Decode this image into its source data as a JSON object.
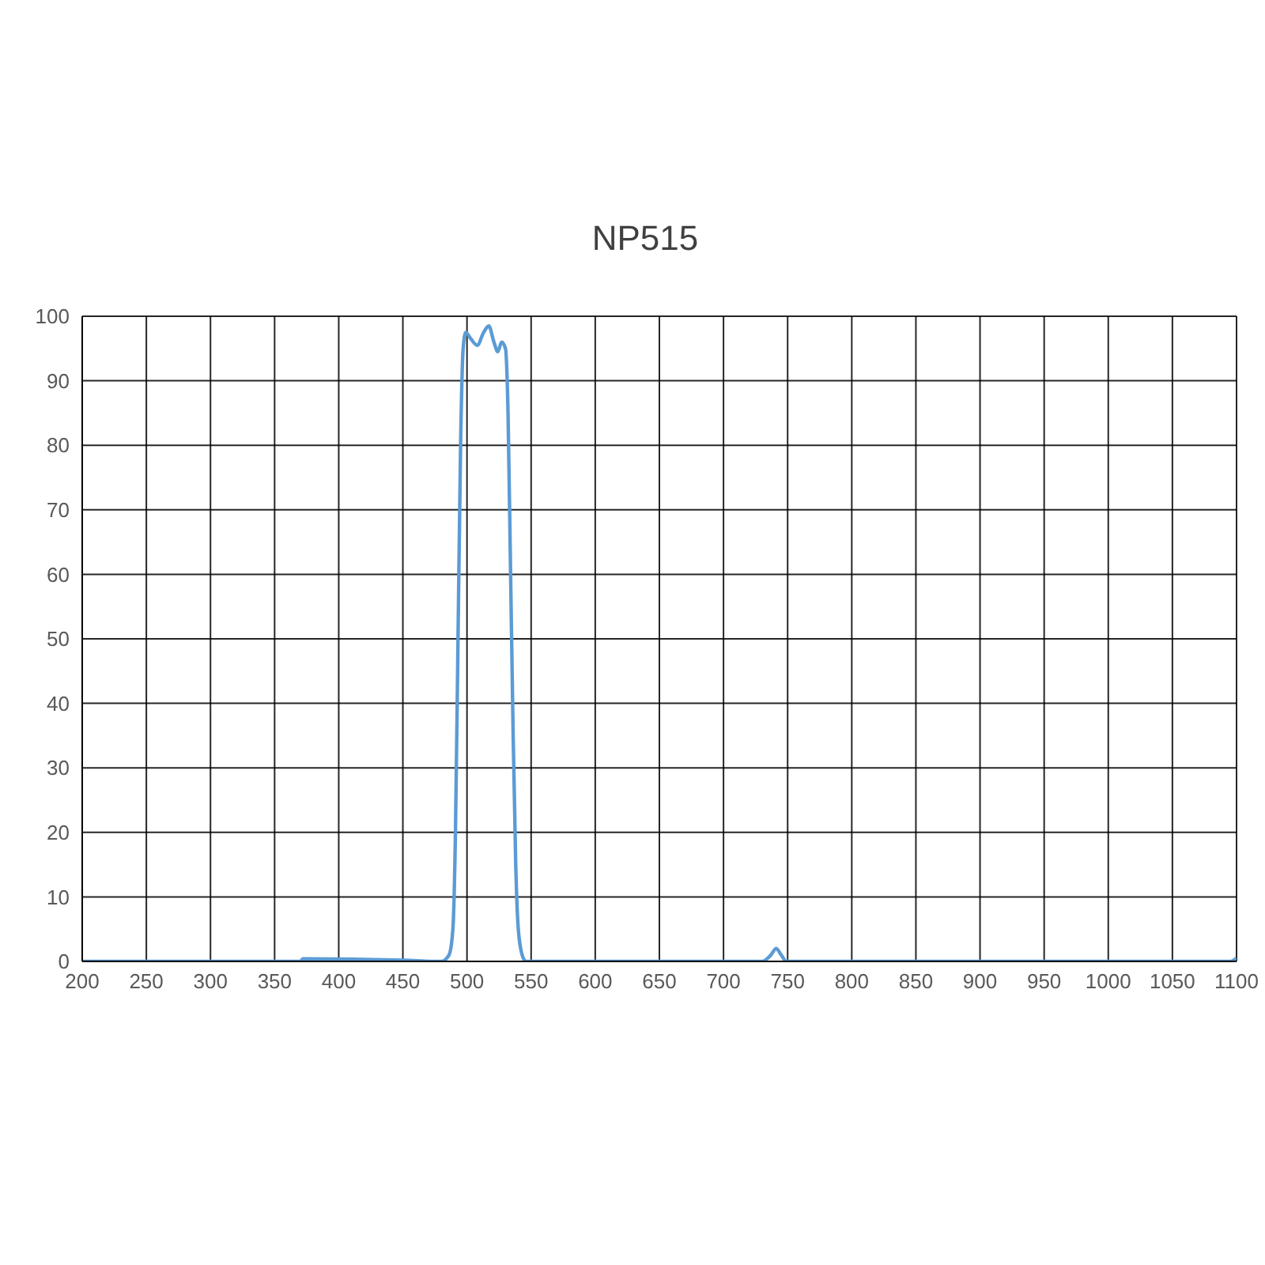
{
  "chart_data": {
    "type": "line",
    "title": "NP515",
    "x": [
      200,
      370,
      372,
      450,
      480,
      486,
      489,
      491,
      493,
      495,
      497,
      499,
      503,
      508,
      513,
      517,
      521,
      524,
      527,
      530,
      532,
      534,
      536,
      538,
      540,
      543,
      546,
      730,
      737,
      741,
      745,
      749,
      1095,
      1100
    ],
    "series": [
      {
        "color": "#5b9bd5",
        "values": [
          0,
          0,
          0.4,
          0.2,
          0,
          1,
          5,
          20,
          50,
          80,
          95,
          97.5,
          96.5,
          95.5,
          97.5,
          98.5,
          96,
          94.5,
          96,
          95,
          85,
          60,
          35,
          15,
          5,
          1,
          0,
          0,
          1,
          2,
          1,
          0,
          0,
          0.5
        ]
      }
    ],
    "xlim": [
      200,
      1100
    ],
    "xticks": [
      200,
      250,
      300,
      350,
      400,
      450,
      500,
      550,
      600,
      650,
      700,
      750,
      800,
      850,
      900,
      950,
      1000,
      1050,
      1100
    ],
    "ylim": [
      0,
      100
    ],
    "yticks": [
      0,
      10,
      20,
      30,
      40,
      50,
      60,
      70,
      80,
      90,
      100
    ],
    "grid": true,
    "marker": "none",
    "line_style": "solid",
    "legend": false
  }
}
